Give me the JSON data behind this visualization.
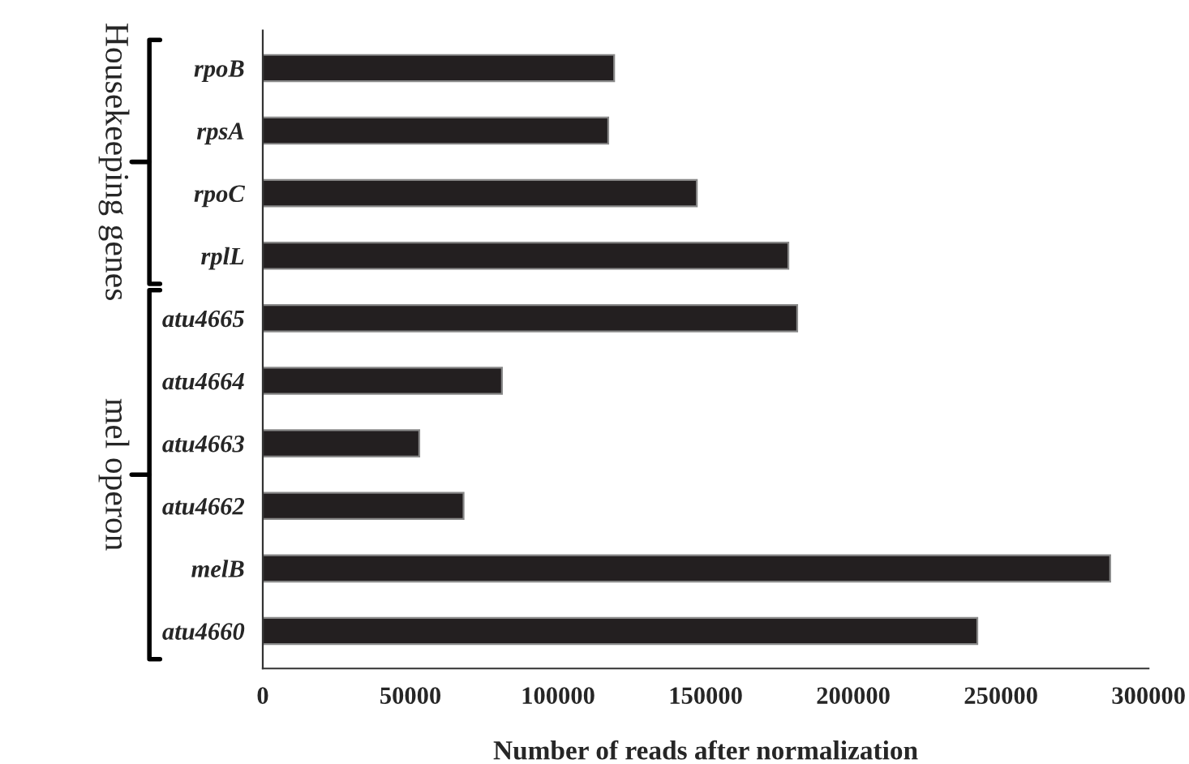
{
  "chart_data": {
    "type": "bar",
    "orientation": "horizontal",
    "categories": [
      "rpoB",
      "rpsA",
      "rpoC",
      "rplL",
      "atu4665",
      "atu4664",
      "atu4663",
      "atu4662",
      "melB",
      "atu4660"
    ],
    "values": [
      119000,
      117000,
      147000,
      178000,
      181000,
      81000,
      53000,
      68000,
      287000,
      242000
    ],
    "color": "#231f20",
    "xlabel": "Number of reads after normalization",
    "xlim": [
      0,
      300000
    ],
    "xticks": [
      0,
      50000,
      100000,
      150000,
      200000,
      250000,
      300000
    ],
    "grid": false,
    "legend": false,
    "annotations": [
      "Housekeeping genes",
      "mel operon"
    ]
  }
}
